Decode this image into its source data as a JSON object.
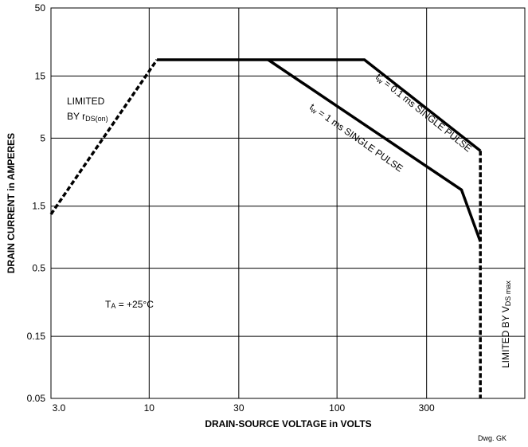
{
  "chart_data": {
    "type": "line",
    "title": "",
    "xlabel": "DRAIN-SOURCE VOLTAGE in VOLTS",
    "ylabel": "DRAIN CURRENT in AMPERES",
    "x_scale": "log",
    "y_scale": "log",
    "xlim": [
      3.0,
      1000
    ],
    "ylim": [
      0.05,
      50
    ],
    "x_ticks": [
      {
        "value": 3.0,
        "label": "3.0"
      },
      {
        "value": 10,
        "label": "10"
      },
      {
        "value": 30,
        "label": "30"
      },
      {
        "value": 100,
        "label": "100"
      },
      {
        "value": 300,
        "label": "300"
      }
    ],
    "y_ticks": [
      {
        "value": 0.05,
        "label": "0.05"
      },
      {
        "value": 0.15,
        "label": "0.15"
      },
      {
        "value": 0.5,
        "label": "0.5"
      },
      {
        "value": 1.5,
        "label": "1.5"
      },
      {
        "value": 5,
        "label": "5"
      },
      {
        "value": 15,
        "label": "15"
      },
      {
        "value": 50,
        "label": "50"
      }
    ],
    "grid": true,
    "series": [
      {
        "style": "dashed",
        "x": [
          3.0,
          11
        ],
        "y": [
          1.3,
          20
        ]
      },
      {
        "style": "solid",
        "x": [
          11,
          140,
          580
        ],
        "y": [
          20,
          20,
          4
        ]
      },
      {
        "style": "solid",
        "x": [
          43,
          460,
          580
        ],
        "y": [
          20,
          2.0,
          0.8
        ]
      },
      {
        "style": "dashed",
        "x": [
          580,
          580
        ],
        "y": [
          4,
          0.05
        ]
      }
    ],
    "annotations": [
      {
        "id": "rds",
        "line1": "LIMITED",
        "line2_prefix": "BY r",
        "line2_sub": "DS(on)"
      },
      {
        "id": "pulse01",
        "prefix": "t",
        "sub": "w",
        "text": " = 0.1 ms SINGLE PULSE"
      },
      {
        "id": "pulse1",
        "prefix": "t",
        "sub": "w",
        "text": " = 1 ms SINGLE PULSE"
      },
      {
        "id": "temp",
        "prefix": "T",
        "sub": "A",
        "text": " = +25°C"
      },
      {
        "id": "vds",
        "prefix": "LIMITED BY V",
        "sub": "DS max"
      }
    ],
    "footer": "Dwg. GK"
  }
}
